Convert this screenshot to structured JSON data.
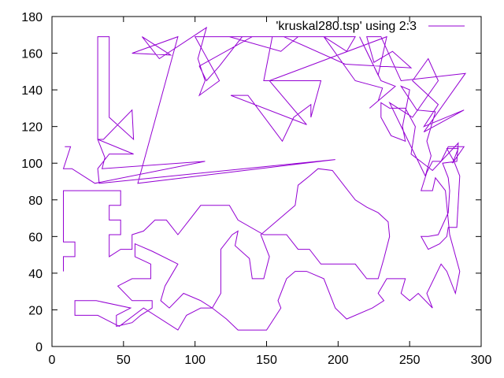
{
  "chart_data": {
    "type": "line",
    "title": "",
    "xlabel": "",
    "ylabel": "",
    "xlim": [
      0,
      300
    ],
    "ylim": [
      0,
      180
    ],
    "xticks": [
      "0",
      "50",
      "100",
      "150",
      "200",
      "250",
      "300"
    ],
    "yticks": [
      "0",
      "20",
      "40",
      "60",
      "80",
      "100",
      "120",
      "140",
      "160",
      "180"
    ],
    "grid": false,
    "legend_position": "top-right",
    "series": [
      {
        "name": "'kruskal280.tsp' using 2:3",
        "color": "#9400d3",
        "points": [
          [
            9,
            109
          ],
          [
            13,
            109
          ],
          [
            8,
            97
          ],
          [
            14,
            97
          ],
          [
            30,
            89
          ],
          [
            107,
            101
          ],
          [
            35,
            97
          ],
          [
            37,
            103
          ],
          [
            32,
            113
          ],
          [
            32,
            169
          ],
          [
            40,
            169
          ],
          [
            40,
            125
          ],
          [
            57,
            113
          ],
          [
            56,
            129
          ],
          [
            36,
            113
          ],
          [
            32,
            113
          ],
          [
            57,
            105
          ],
          [
            40,
            105
          ],
          [
            32,
            97
          ],
          [
            33,
            89
          ],
          [
            198,
            102
          ],
          [
            60,
            89
          ],
          [
            88,
            169
          ],
          [
            56,
            160
          ],
          [
            83,
            159
          ],
          [
            63,
            169
          ],
          [
            75,
            157
          ],
          [
            108,
            174
          ],
          [
            102,
            157
          ],
          [
            107,
            145
          ],
          [
            103,
            137
          ],
          [
            117,
            145
          ],
          [
            100,
            169
          ],
          [
            172,
            169
          ],
          [
            160,
            161
          ],
          [
            124,
            169
          ],
          [
            133,
            169
          ],
          [
            117,
            153
          ],
          [
            108,
            145
          ],
          [
            103,
            153
          ],
          [
            140,
            169
          ],
          [
            212,
            169
          ],
          [
            206,
            161
          ],
          [
            190,
            169
          ],
          [
            212,
            145
          ],
          [
            231,
            141
          ],
          [
            228,
            134
          ],
          [
            222,
            130
          ],
          [
            240,
            142
          ],
          [
            230,
            145
          ],
          [
            215,
            169
          ],
          [
            228,
            148
          ],
          [
            234,
            169
          ],
          [
            152,
            145
          ],
          [
            178,
            121
          ],
          [
            125,
            137
          ],
          [
            137,
            137
          ],
          [
            161,
            112
          ],
          [
            169,
            125
          ],
          [
            181,
            132
          ],
          [
            181,
            125
          ],
          [
            188,
            145
          ],
          [
            148,
            145
          ],
          [
            154,
            169
          ],
          [
            162,
            169
          ],
          [
            205,
            154
          ],
          [
            251,
            152
          ],
          [
            238,
            161
          ],
          [
            225,
            155
          ],
          [
            220,
            169
          ],
          [
            230,
            169
          ],
          [
            244,
            145
          ],
          [
            289,
            149
          ],
          [
            260,
            117
          ],
          [
            288,
            129
          ],
          [
            260,
            120
          ],
          [
            270,
            132
          ],
          [
            252,
            145
          ],
          [
            263,
            157
          ],
          [
            270,
            145
          ],
          [
            252,
            125
          ],
          [
            236,
            133
          ],
          [
            261,
            93
          ],
          [
            265,
            104
          ],
          [
            262,
            112
          ],
          [
            268,
            128
          ],
          [
            255,
            129
          ],
          [
            244,
            142
          ],
          [
            250,
            140
          ],
          [
            245,
            120
          ],
          [
            247,
            112
          ],
          [
            237,
            115
          ],
          [
            230,
            125
          ],
          [
            230,
            133
          ],
          [
            236,
            130
          ],
          [
            247,
            130
          ],
          [
            254,
            120
          ],
          [
            251,
            105
          ],
          [
            266,
            96
          ],
          [
            284,
            111
          ],
          [
            283,
            101
          ],
          [
            273,
            100
          ],
          [
            277,
            92
          ],
          [
            278,
            85
          ],
          [
            277,
            73
          ],
          [
            270,
            61
          ],
          [
            263,
            60
          ],
          [
            258,
            60
          ],
          [
            263,
            53
          ],
          [
            271,
            56
          ],
          [
            276,
            60
          ],
          [
            277,
            65
          ],
          [
            283,
            65
          ],
          [
            285,
            93
          ],
          [
            281,
            101
          ],
          [
            276,
            108
          ],
          [
            284,
            108
          ],
          [
            280,
            100
          ],
          [
            288,
            109
          ],
          [
            277,
            109
          ],
          [
            272,
            101
          ],
          [
            266,
            101
          ],
          [
            262,
            95
          ],
          [
            258,
            85
          ],
          [
            266,
            85
          ],
          [
            268,
            92
          ],
          [
            275,
            85
          ],
          [
            278,
            61
          ],
          [
            285,
            41
          ],
          [
            282,
            29
          ],
          [
            276,
            41
          ],
          [
            272,
            45
          ],
          [
            262,
            29
          ],
          [
            266,
            21
          ],
          [
            256,
            29
          ],
          [
            250,
            25
          ],
          [
            244,
            29
          ],
          [
            247,
            37
          ],
          [
            234,
            37
          ],
          [
            228,
            29
          ],
          [
            232,
            25
          ],
          [
            224,
            21
          ],
          [
            206,
            15
          ],
          [
            198,
            21
          ],
          [
            196,
            25
          ],
          [
            190,
            37
          ],
          [
            178,
            41
          ],
          [
            170,
            41
          ],
          [
            164,
            37
          ],
          [
            158,
            25
          ],
          [
            160,
            21
          ],
          [
            150,
            9
          ],
          [
            140,
            9
          ],
          [
            130,
            9
          ],
          [
            122,
            15
          ],
          [
            112,
            21
          ],
          [
            104,
            25
          ],
          [
            92,
            29
          ],
          [
            82,
            21
          ],
          [
            76,
            25
          ],
          [
            79,
            33
          ],
          [
            88,
            45
          ],
          [
            70,
            52
          ],
          [
            58,
            56
          ],
          [
            58,
            49
          ],
          [
            69,
            45
          ],
          [
            69,
            37
          ],
          [
            56,
            37
          ],
          [
            46,
            33
          ],
          [
            56,
            25
          ],
          [
            70,
            25
          ],
          [
            70,
            21
          ],
          [
            62,
            17
          ],
          [
            56,
            13
          ],
          [
            45,
            11
          ],
          [
            45,
            17
          ],
          [
            55,
            21
          ],
          [
            31,
            25
          ],
          [
            16,
            25
          ],
          [
            16,
            17
          ],
          [
            32,
            17
          ],
          [
            47,
            11
          ],
          [
            64,
            21
          ],
          [
            88,
            9
          ],
          [
            94,
            17
          ],
          [
            104,
            21
          ],
          [
            112,
            21
          ],
          [
            118,
            29
          ],
          [
            118,
            53
          ],
          [
            126,
            61
          ],
          [
            130,
            63
          ],
          [
            128,
            55
          ],
          [
            138,
            48
          ],
          [
            140,
            37
          ],
          [
            148,
            37
          ],
          [
            152,
            49
          ],
          [
            146,
            61
          ],
          [
            158,
            69
          ],
          [
            170,
            77
          ],
          [
            172,
            88
          ],
          [
            180,
            93
          ],
          [
            186,
            97
          ],
          [
            196,
            96
          ],
          [
            204,
            88
          ],
          [
            212,
            80
          ],
          [
            220,
            76
          ],
          [
            228,
            73
          ],
          [
            235,
            68
          ],
          [
            236,
            60
          ],
          [
            232,
            48
          ],
          [
            228,
            37
          ],
          [
            220,
            37
          ],
          [
            212,
            45
          ],
          [
            204,
            45
          ],
          [
            196,
            45
          ],
          [
            188,
            45
          ],
          [
            180,
            53
          ],
          [
            172,
            53
          ],
          [
            164,
            61
          ],
          [
            155,
            61
          ],
          [
            148,
            61
          ],
          [
            130,
            69
          ],
          [
            124,
            77
          ],
          [
            118,
            77
          ],
          [
            112,
            77
          ],
          [
            104,
            77
          ],
          [
            96,
            69
          ],
          [
            88,
            61
          ],
          [
            80,
            69
          ],
          [
            72,
            69
          ],
          [
            64,
            63
          ],
          [
            56,
            61
          ],
          [
            56,
            53
          ],
          [
            48,
            53
          ],
          [
            40,
            49
          ],
          [
            40,
            61
          ],
          [
            48,
            61
          ],
          [
            48,
            69
          ],
          [
            40,
            69
          ],
          [
            40,
            77
          ],
          [
            48,
            77
          ],
          [
            48,
            85
          ],
          [
            40,
            85
          ],
          [
            32,
            85
          ],
          [
            24,
            85
          ],
          [
            16,
            85
          ],
          [
            8,
            85
          ],
          [
            8,
            77
          ],
          [
            8,
            69
          ],
          [
            8,
            57
          ],
          [
            16,
            57
          ],
          [
            16,
            49
          ],
          [
            8,
            49
          ],
          [
            8,
            41
          ]
        ]
      }
    ]
  }
}
